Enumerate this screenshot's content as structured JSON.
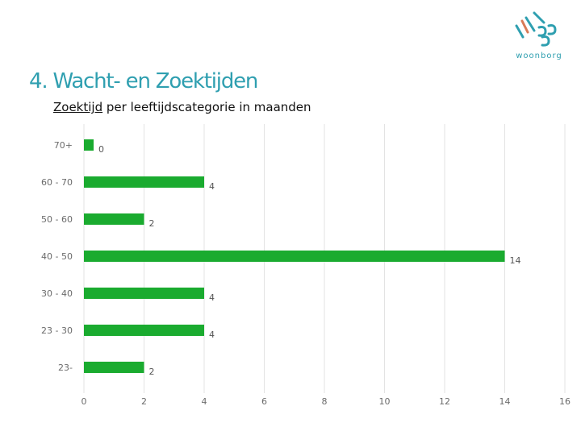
{
  "logo": {
    "name": "woonborg",
    "color": "#2f9fb0",
    "accent_color": "#d97a56"
  },
  "slide": {
    "title": "4. Wacht- en Zoektijden",
    "title_color": "#2f9fb0",
    "subtitle_underlined": "Zoektijd",
    "subtitle_rest": " per leeftijdscategorie in maanden"
  },
  "chart_data": {
    "type": "bar",
    "orientation": "horizontal",
    "title": "Zoektijd per leeftijdscategorie in maanden",
    "categories": [
      "70+",
      "60 - 70",
      "50 - 60",
      "40 - 50",
      "30 - 40",
      "23 - 30",
      "23-"
    ],
    "values": [
      0,
      4,
      2,
      14,
      4,
      4,
      2
    ],
    "data_labels": [
      "0",
      "4",
      "2",
      "14",
      "4",
      "4",
      "2"
    ],
    "xlim": [
      0,
      16
    ],
    "xticks": [
      0,
      2,
      4,
      6,
      8,
      10,
      12,
      14,
      16
    ],
    "bar_color": "#1aab2f",
    "grid": true,
    "legend": "none"
  }
}
